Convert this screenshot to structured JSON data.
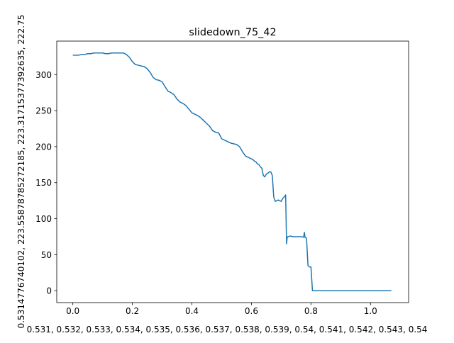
{
  "chart_data": {
    "type": "line",
    "title": "slidedown_75_42",
    "xlabel": "0.531, 0.532, 0.533, 0.534, 0.535, 0.536, 0.537, 0.538, 0.539, 0.54, 0.541, 0.542, 0.543, 0.54",
    "ylabel": "0.5314776740102, 223.5587878527218​5, 223.31715377392635, 222.75",
    "xlim": [
      -0.054,
      1.128
    ],
    "ylim": [
      -16.5,
      346.5
    ],
    "xticks": [
      0.0,
      0.2,
      0.4,
      0.6,
      0.8,
      1.0
    ],
    "xtick_labels": [
      "0.0",
      "0.2",
      "0.4",
      "0.6",
      "0.8",
      "1.0"
    ],
    "yticks": [
      0,
      50,
      100,
      150,
      200,
      250,
      300
    ],
    "ytick_labels": [
      "0",
      "50",
      "100",
      "150",
      "200",
      "250",
      "300"
    ],
    "grid": false,
    "line_color": "#1f77b4",
    "series": [
      {
        "x": [
          0.0,
          0.01,
          0.02,
          0.03,
          0.04,
          0.05,
          0.06,
          0.07,
          0.08,
          0.09,
          0.1,
          0.11,
          0.12,
          0.13,
          0.14,
          0.15,
          0.16,
          0.17,
          0.18,
          0.19,
          0.2,
          0.21,
          0.22,
          0.23,
          0.24,
          0.25,
          0.26,
          0.27,
          0.28,
          0.29,
          0.3,
          0.31,
          0.32,
          0.33,
          0.34,
          0.35,
          0.36,
          0.37,
          0.38,
          0.39,
          0.4,
          0.41,
          0.42,
          0.43,
          0.44,
          0.45,
          0.46,
          0.47,
          0.48,
          0.49,
          0.5,
          0.51,
          0.52,
          0.53,
          0.54,
          0.55,
          0.56,
          0.57,
          0.58,
          0.585,
          0.59,
          0.595,
          0.6,
          0.605,
          0.61,
          0.615,
          0.62,
          0.625,
          0.63,
          0.635,
          0.64,
          0.645,
          0.65,
          0.655,
          0.66,
          0.665,
          0.67,
          0.675,
          0.68,
          0.685,
          0.69,
          0.695,
          0.7,
          0.705,
          0.71,
          0.715,
          0.718,
          0.72,
          0.722,
          0.725,
          0.73,
          0.74,
          0.75,
          0.76,
          0.77,
          0.775,
          0.778,
          0.78,
          0.785,
          0.79,
          0.795,
          0.798,
          0.8,
          0.805,
          0.81,
          0.815,
          0.818,
          0.82,
          0.822,
          0.83,
          0.85,
          0.9,
          0.95,
          1.0,
          1.05,
          1.07
        ],
        "y": [
          327,
          327,
          327,
          328,
          328,
          329,
          329,
          330,
          330,
          330,
          330,
          329,
          329,
          330,
          330,
          330,
          330,
          330,
          328,
          324,
          318,
          314,
          313,
          312,
          311,
          308,
          303,
          296,
          293,
          292,
          290,
          283,
          277,
          275,
          272,
          266,
          262,
          260,
          257,
          252,
          247,
          245,
          243,
          240,
          236,
          232,
          228,
          222,
          220,
          219,
          211,
          209,
          207,
          205,
          204,
          203,
          200,
          193,
          187,
          186,
          185,
          184,
          183,
          182,
          180,
          179,
          176,
          175,
          172,
          170,
          160,
          158,
          162,
          163,
          165,
          165,
          160,
          130,
          124,
          125,
          126,
          125,
          124,
          128,
          130,
          133,
          65,
          74,
          75,
          75,
          76,
          75,
          75,
          75,
          75,
          74,
          81,
          74,
          73,
          35,
          33,
          33,
          33,
          0,
          0,
          0,
          0,
          0,
          0,
          0,
          0,
          0,
          0,
          0,
          0,
          0
        ]
      }
    ]
  }
}
